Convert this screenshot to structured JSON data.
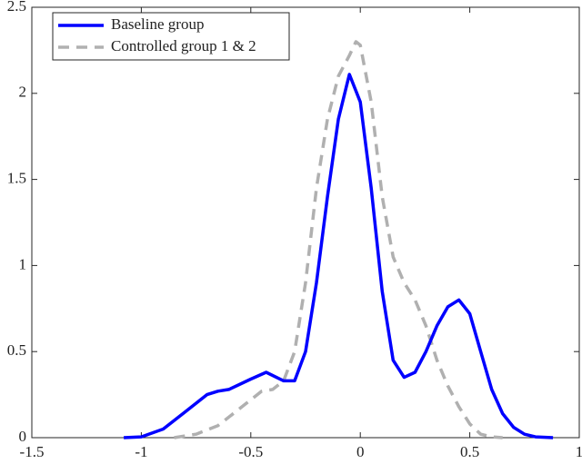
{
  "chart_data": {
    "type": "line",
    "xlim": [
      -1.5,
      1
    ],
    "xticks": [
      -1.5,
      -1,
      -0.5,
      0,
      0.5,
      1
    ],
    "ylim": [
      0,
      2.5
    ],
    "yticks": [
      0,
      0.5,
      1,
      1.5,
      2,
      2.5
    ],
    "legend": "upper left",
    "series": [
      {
        "name": "Baseline group",
        "color": "#0000ff",
        "dash": "solid",
        "x": [
          -1.08,
          -1.0,
          -0.9,
          -0.8,
          -0.7,
          -0.65,
          -0.6,
          -0.5,
          -0.43,
          -0.35,
          -0.3,
          -0.25,
          -0.2,
          -0.15,
          -0.1,
          -0.05,
          0,
          0.05,
          0.1,
          0.15,
          0.2,
          0.25,
          0.3,
          0.35,
          0.4,
          0.45,
          0.5,
          0.55,
          0.6,
          0.65,
          0.7,
          0.75,
          0.8,
          0.88
        ],
        "values": [
          0,
          0.005,
          0.05,
          0.15,
          0.25,
          0.27,
          0.28,
          0.34,
          0.38,
          0.33,
          0.33,
          0.5,
          0.9,
          1.4,
          1.85,
          2.11,
          1.95,
          1.45,
          0.85,
          0.45,
          0.35,
          0.38,
          0.5,
          0.65,
          0.76,
          0.8,
          0.72,
          0.5,
          0.28,
          0.14,
          0.06,
          0.02,
          0.005,
          0
        ]
      },
      {
        "name": "Controlled group 1 & 2",
        "color": "#b0b0b0",
        "dash": "dashed",
        "x": [
          -0.85,
          -0.75,
          -0.65,
          -0.55,
          -0.45,
          -0.4,
          -0.35,
          -0.3,
          -0.25,
          -0.2,
          -0.15,
          -0.1,
          -0.05,
          -0.02,
          0,
          0.05,
          0.1,
          0.15,
          0.2,
          0.25,
          0.3,
          0.35,
          0.4,
          0.45,
          0.5,
          0.55,
          0.6,
          0.65
        ],
        "values": [
          0,
          0.02,
          0.07,
          0.17,
          0.27,
          0.28,
          0.33,
          0.5,
          0.9,
          1.45,
          1.85,
          2.1,
          2.22,
          2.3,
          2.28,
          1.95,
          1.4,
          1.05,
          0.9,
          0.8,
          0.65,
          0.45,
          0.3,
          0.18,
          0.08,
          0.02,
          0.005,
          0
        ]
      }
    ]
  }
}
